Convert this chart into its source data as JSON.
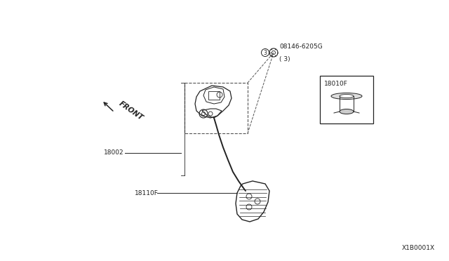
{
  "bg_color": "#ffffff",
  "line_color": "#222222",
  "dashed_color": "#555555",
  "part_label_1": "08146-6205G",
  "part_label_1b": "( 3)",
  "part_label_2": "18010F",
  "part_label_3": "18002",
  "part_label_4": "18110F",
  "front_label": "FRONT",
  "diagram_id": "X1B0001X",
  "label_fontsize": 6.5,
  "front_fontsize": 7.5
}
